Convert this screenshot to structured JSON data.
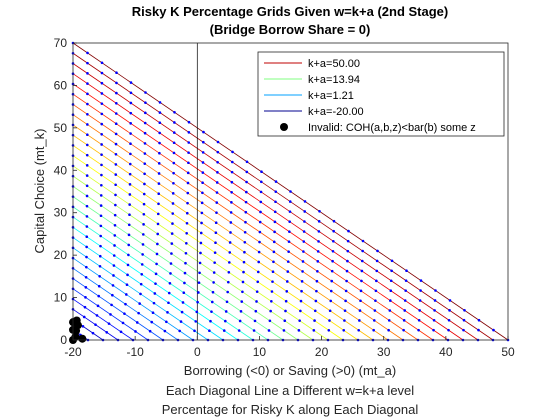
{
  "chart_data": {
    "type": "line",
    "title": "Risky K Percentage Grids Given w=k+a (2nd Stage)",
    "subtitle": "(Bridge Borrow Share = 0)",
    "xlabel": "Borrowing (<0) or Saving (>0) (mt_a)",
    "xlabel_line2": "Each Diagonal Line a Different w=k+a level",
    "xlabel_line3": "Percentage for Risky K along Each Diagonal",
    "ylabel": "Capital Choice (mt_k)",
    "xlim": [
      -20,
      50
    ],
    "ylim": [
      0,
      70
    ],
    "xticks": [
      "-20",
      "-10",
      "0",
      "10",
      "20",
      "30",
      "40",
      "50"
    ],
    "yticks": [
      "0",
      "10",
      "20",
      "30",
      "40",
      "50",
      "60",
      "70"
    ],
    "grid": false,
    "vertical_reference_line_x": 0,
    "w_levels": {
      "min": -20,
      "max": 50,
      "count": 30,
      "colormap": "jet"
    },
    "percentage_rays": [
      0.05,
      0.15,
      0.3,
      0.45,
      0.6,
      0.75,
      0.9,
      0.97
    ],
    "points_per_diagonal": [
      2,
      3,
      4,
      5,
      6,
      7,
      8,
      9,
      10,
      11,
      12,
      13,
      14,
      15,
      16,
      17,
      18,
      19,
      20,
      21,
      22,
      23,
      24,
      25,
      26,
      27,
      28,
      29,
      30,
      31
    ],
    "invalid_points": [
      {
        "a": -20,
        "k": 0.0
      },
      {
        "a": -19.6,
        "k": 0.8
      },
      {
        "a": -18.5,
        "k": 0.3
      },
      {
        "a": -19.5,
        "k": 2.2
      },
      {
        "a": -20,
        "k": 2.4
      },
      {
        "a": -19.2,
        "k": 3.5
      },
      {
        "a": -20,
        "k": 4.2
      },
      {
        "a": -19.4,
        "k": 4.6
      }
    ],
    "legend": {
      "position": "top-right",
      "entries": [
        {
          "label": "k+a=50.00",
          "color": "#bf0000",
          "marker": "line"
        },
        {
          "label": "k+a=13.94",
          "color": "#80ff80",
          "marker": "line"
        },
        {
          "label": "k+a=1.21",
          "color": "#00a0ff",
          "marker": "line"
        },
        {
          "label": "k+a=-20.00",
          "color": "#00008f",
          "marker": "line"
        },
        {
          "label": "Invalid: COH(a,b,z)<bar(b) some z",
          "color": "#000000",
          "marker": "dot"
        }
      ]
    },
    "colors": {
      "points": "#0000ff",
      "reference_line": "#000000",
      "invalid": "#000000"
    }
  }
}
